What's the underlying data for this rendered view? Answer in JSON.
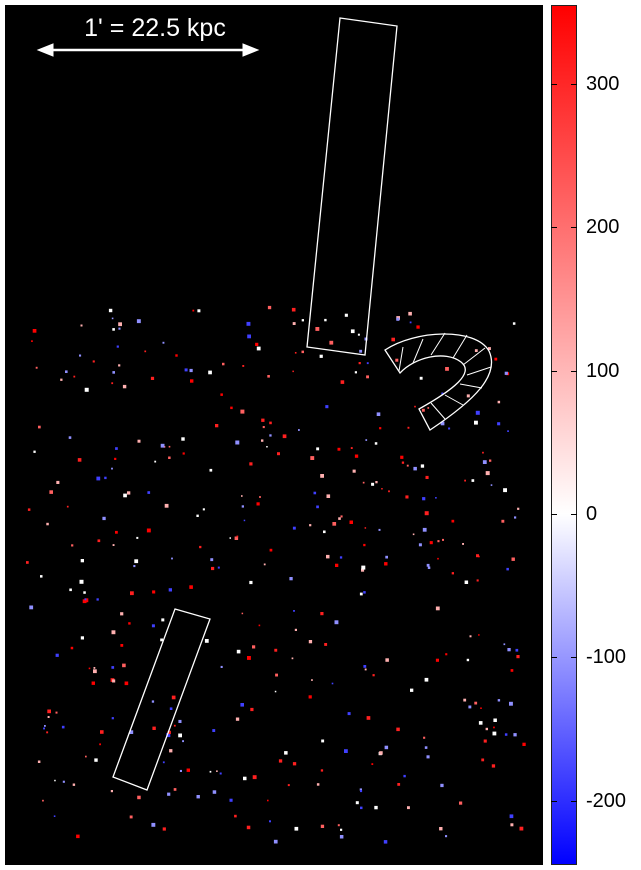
{
  "scale_bar": {
    "label": "1' = 22.5 kpc"
  },
  "colorbar": {
    "colors": [
      "#0000ff",
      "#ffffff",
      "#ff0000"
    ],
    "range": [
      -245,
      355
    ],
    "ticks": [
      {
        "value": 300,
        "label": "300"
      },
      {
        "value": 200,
        "label": "200"
      },
      {
        "value": 100,
        "label": "100"
      },
      {
        "value": 0,
        "label": "0"
      },
      {
        "value": -100,
        "label": "-100"
      },
      {
        "value": -200,
        "label": "-200"
      }
    ]
  },
  "colors": {
    "background": "#000000",
    "positive": "#ff0000",
    "negative": "#0000ff",
    "overlay": "#ffffff"
  }
}
